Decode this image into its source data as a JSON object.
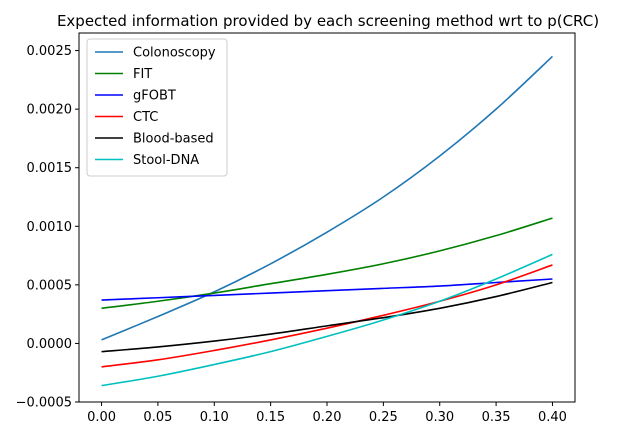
{
  "chart_data": {
    "type": "line",
    "title": "Expected information provided by each screening method wrt to p(CRC)",
    "xlabel": "",
    "ylabel": "",
    "xlim": [
      -0.02,
      0.42
    ],
    "ylim": [
      -0.0005,
      0.00265
    ],
    "xticks": [
      0.0,
      0.05,
      0.1,
      0.15,
      0.2,
      0.25,
      0.3,
      0.35,
      0.4
    ],
    "xtick_labels": [
      "0.00",
      "0.05",
      "0.10",
      "0.15",
      "0.20",
      "0.25",
      "0.30",
      "0.35",
      "0.40"
    ],
    "yticks": [
      -0.0005,
      0.0,
      0.0005,
      0.001,
      0.0015,
      0.002,
      0.0025
    ],
    "ytick_labels": [
      "−0.0005",
      "0.0000",
      "0.0005",
      "0.0010",
      "0.0015",
      "0.0020",
      "0.0025"
    ],
    "grid": false,
    "legend_position": "upper-left",
    "x": [
      0.0,
      0.05,
      0.1,
      0.15,
      0.2,
      0.25,
      0.3,
      0.35,
      0.4
    ],
    "series": [
      {
        "name": "Colonoscopy",
        "color": "#1f77b4",
        "values": [
          3e-05,
          0.00023,
          0.00044,
          0.00068,
          0.00095,
          0.00125,
          0.0016,
          0.002,
          0.00245
        ]
      },
      {
        "name": "FIT",
        "color": "#008000",
        "values": [
          0.0003,
          0.00036,
          0.00043,
          0.00051,
          0.00059,
          0.00068,
          0.00079,
          0.00092,
          0.00107
        ]
      },
      {
        "name": "gFOBT",
        "color": "#0000ff",
        "values": [
          0.00037,
          0.00039,
          0.00041,
          0.00043,
          0.00045,
          0.00047,
          0.00049,
          0.00052,
          0.00055
        ]
      },
      {
        "name": "CTC",
        "color": "#ff0000",
        "values": [
          -0.0002,
          -0.00014,
          -6e-05,
          3e-05,
          0.00013,
          0.00024,
          0.00036,
          0.0005,
          0.00067
        ]
      },
      {
        "name": "Blood-based",
        "color": "#000000",
        "values": [
          -7e-05,
          -3e-05,
          2e-05,
          8e-05,
          0.00015,
          0.00022,
          0.0003,
          0.0004,
          0.00052
        ]
      },
      {
        "name": "Stool-DNA",
        "color": "#00bfbf",
        "values": [
          -0.00036,
          -0.00028,
          -0.00018,
          -7e-05,
          6e-05,
          0.0002,
          0.00036,
          0.00055,
          0.00076
        ]
      }
    ]
  }
}
